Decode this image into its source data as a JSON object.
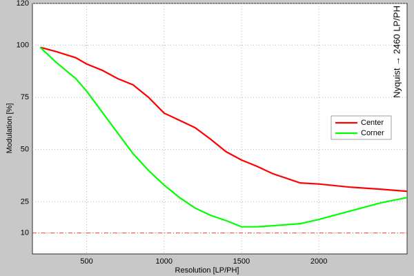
{
  "chart_data": {
    "type": "line",
    "xlabel": "Resolution [LP/PH]",
    "ylabel": "Modulation [%]",
    "annotation": "Nyquist → 2460 LP/PH",
    "annotation_color": "#ff0000",
    "x": [
      200,
      300,
      430,
      500,
      600,
      700,
      800,
      900,
      1000,
      1100,
      1200,
      1300,
      1400,
      1500,
      1600,
      1700,
      1880,
      2000,
      2200,
      2400,
      2570
    ],
    "series": [
      {
        "name": "Center",
        "color": "#ff0000",
        "values": [
          99,
          97,
          94,
          91,
          88,
          84,
          81,
          75,
          67.5,
          64,
          60.5,
          55,
          49,
          45,
          42,
          38.5,
          34,
          33.5,
          32,
          31,
          30
        ]
      },
      {
        "name": "Corner",
        "color": "#00ff00",
        "values": [
          99,
          92,
          84,
          78,
          68,
          58,
          48,
          40,
          33,
          27,
          22,
          18.5,
          16,
          13,
          13,
          13.5,
          14.5,
          16.5,
          20.5,
          24.5,
          27
        ]
      }
    ],
    "hline": {
      "value": 10,
      "color": "#ff0000"
    },
    "xlim": [
      150,
      2570
    ],
    "xticks": [
      500,
      1000,
      1500,
      2000
    ],
    "ylim": [
      0,
      120
    ],
    "yticks": [
      10,
      25,
      50,
      75,
      100,
      120
    ],
    "grid": true,
    "legend": "right"
  }
}
